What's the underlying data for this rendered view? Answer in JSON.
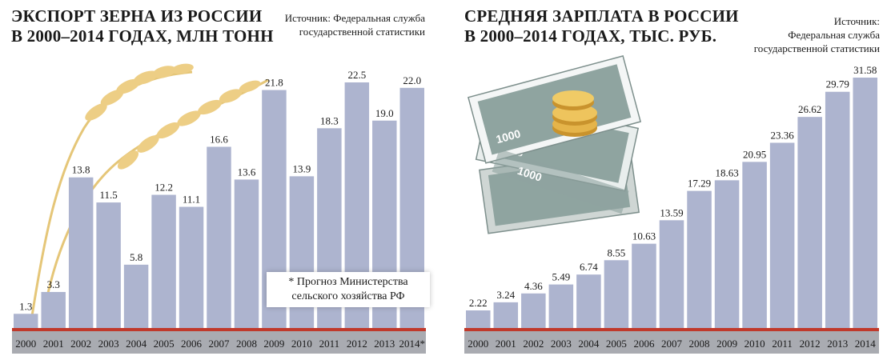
{
  "left": {
    "title_line1": "ЭКСПОРТ ЗЕРНА ИЗ РОССИИ",
    "title_line2": "В 2000–2014 ГОДАХ, МЛН ТОНН",
    "source_line1": "Источник: Федеральная служба",
    "source_line2": "государственной статистики",
    "note_line1": "* Прогноз Министерства",
    "note_line2": "сельского хозяйства РФ"
  },
  "right": {
    "title_line1": "СРЕДНЯЯ ЗАРПЛАТА В РОССИИ",
    "title_line2": "В 2000–2014 ГОДАХ, ТЫС. РУБ.",
    "source_line1": "Источник:",
    "source_line2": "Федеральная служба",
    "source_line3": "государственной статистики",
    "banknote_value": "1000"
  },
  "colors": {
    "bar": "#adb4cf",
    "axis_band": "#a9abb1",
    "red_line": "#c0392b",
    "wheat": "#e8c775",
    "money": "#8fa4a0"
  },
  "chart_data": [
    {
      "type": "bar",
      "title": "ЭКСПОРТ ЗЕРНА ИЗ РОССИИ В 2000–2014 ГОДАХ, МЛН ТОНН",
      "categories": [
        "2000",
        "2001",
        "2002",
        "2003",
        "2004",
        "2005",
        "2006",
        "2007",
        "2008",
        "2009",
        "2010",
        "2011",
        "2012",
        "2013",
        "2014*"
      ],
      "values": [
        1.3,
        3.3,
        13.8,
        11.5,
        5.8,
        12.2,
        11.1,
        16.6,
        13.6,
        21.8,
        13.9,
        18.3,
        22.5,
        19.0,
        22.0
      ],
      "value_labels": [
        "1.3",
        "3.3",
        "13.8",
        "11.5",
        "5.8",
        "12.2",
        "11.1",
        "16.6",
        "13.6",
        "21.8",
        "13.9",
        "18.3",
        "22.5",
        "19.0",
        "22.0"
      ],
      "ylim": [
        0,
        22.5
      ]
    },
    {
      "type": "bar",
      "title": "СРЕДНЯЯ ЗАРПЛАТА В РОССИИ В 2000–2014 ГОДАХ, ТЫС. РУБ.",
      "categories": [
        "2000",
        "2001",
        "2002",
        "2003",
        "2004",
        "2005",
        "2006",
        "2007",
        "2008",
        "2009",
        "2010",
        "2011",
        "2012",
        "2013",
        "2014"
      ],
      "values": [
        2.22,
        3.24,
        4.36,
        5.49,
        6.74,
        8.55,
        10.63,
        13.59,
        17.29,
        18.63,
        20.95,
        23.36,
        26.62,
        29.79,
        31.58
      ],
      "value_labels": [
        "2.22",
        "3.24",
        "4.36",
        "5.49",
        "6.74",
        "8.55",
        "10.63",
        "13.59",
        "17.29",
        "18.63",
        "20.95",
        "23.36",
        "26.62",
        "29.79",
        "31.58"
      ],
      "ylim": [
        0,
        31.58
      ]
    }
  ]
}
